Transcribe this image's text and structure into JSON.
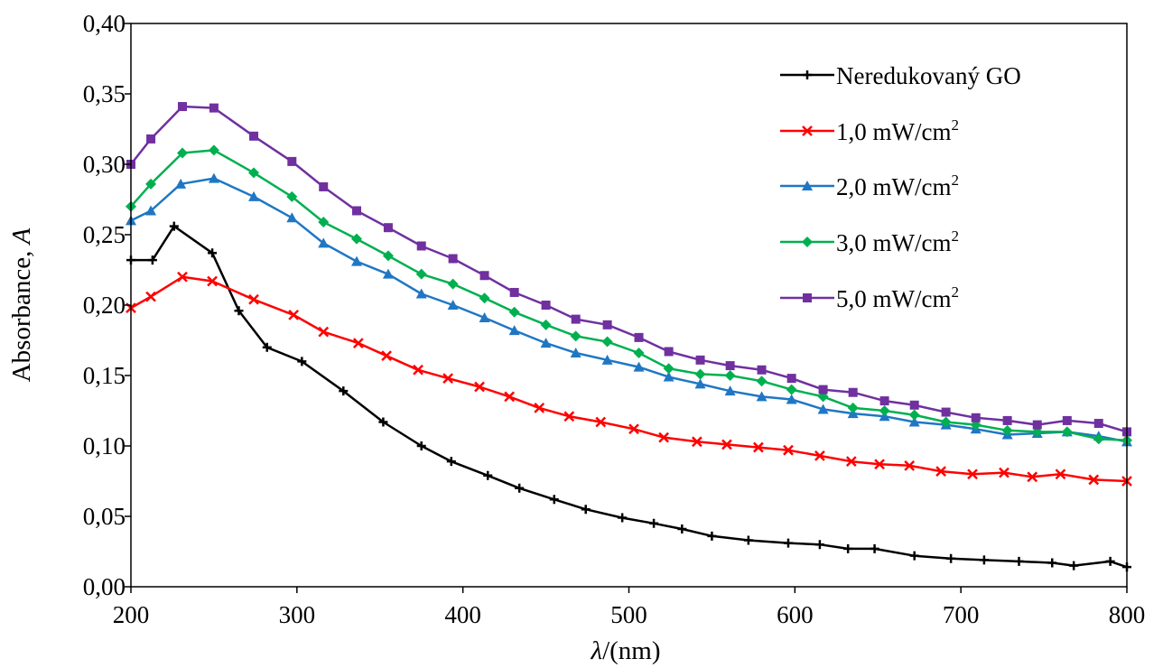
{
  "chart_data": {
    "type": "line",
    "xlabel_symbol": "λ",
    "xlabel_unit": "/(nm)",
    "ylabel_text": "Absorbance, ",
    "ylabel_symbol": "A",
    "xlim": [
      200,
      800
    ],
    "ylim": [
      0,
      0.4
    ],
    "x_ticks": [
      200,
      300,
      400,
      500,
      600,
      700,
      800
    ],
    "x_tick_labels": [
      "200",
      "300",
      "400",
      "500",
      "600",
      "700",
      "800"
    ],
    "y_ticks": [
      0,
      0.05,
      0.1,
      0.15,
      0.2,
      0.25,
      0.3,
      0.35,
      0.4
    ],
    "y_tick_labels": [
      "0,00",
      "0,05",
      "0,10",
      "0,15",
      "0,20",
      "0,25",
      "0,30",
      "0,35",
      "0,40"
    ],
    "grid": false,
    "legend_position": "top-right",
    "x": [
      200,
      213,
      226,
      249,
      265,
      282,
      303,
      328,
      352,
      375,
      393,
      415,
      434,
      455,
      474,
      496,
      515,
      532,
      550,
      572,
      596,
      615,
      632,
      648,
      672,
      694,
      714,
      735,
      755,
      768,
      790,
      800
    ],
    "series": [
      {
        "name": "Neredukovaný GO",
        "color": "#000000",
        "marker": "plus",
        "x": [
          200,
          213,
          226,
          249,
          265,
          282,
          303,
          328,
          352,
          375,
          393,
          415,
          434,
          455,
          474,
          496,
          515,
          532,
          550,
          572,
          596,
          615,
          632,
          648,
          672,
          694,
          714,
          735,
          755,
          768,
          790,
          800
        ],
        "values": [
          0.232,
          0.232,
          0.256,
          0.237,
          0.196,
          0.17,
          0.16,
          0.139,
          0.117,
          0.1,
          0.089,
          0.079,
          0.07,
          0.062,
          0.055,
          0.049,
          0.045,
          0.041,
          0.036,
          0.033,
          0.031,
          0.03,
          0.027,
          0.027,
          0.022,
          0.02,
          0.019,
          0.018,
          0.017,
          0.015,
          0.018,
          0.014
        ]
      },
      {
        "name": "1,0  mW/cm",
        "name_sup": "2",
        "color": "#ff0000",
        "marker": "cross",
        "x": [
          200,
          212,
          231,
          249,
          274,
          298,
          316,
          337,
          354,
          373,
          391,
          410,
          428,
          446,
          464,
          483,
          503,
          521,
          541,
          559,
          578,
          596,
          615,
          634,
          651,
          669,
          688,
          707,
          726,
          743,
          760,
          780,
          800
        ],
        "values": [
          0.198,
          0.206,
          0.22,
          0.217,
          0.204,
          0.193,
          0.181,
          0.173,
          0.164,
          0.154,
          0.148,
          0.142,
          0.135,
          0.127,
          0.121,
          0.117,
          0.112,
          0.106,
          0.103,
          0.101,
          0.099,
          0.097,
          0.093,
          0.089,
          0.087,
          0.086,
          0.082,
          0.08,
          0.081,
          0.078,
          0.08,
          0.076,
          0.075
        ]
      },
      {
        "name": "2,0  mW/cm",
        "name_sup": "2",
        "color": "#1f77c4",
        "marker": "triangle",
        "x": [
          200,
          212,
          230,
          250,
          274,
          297,
          316,
          336,
          355,
          375,
          394,
          413,
          431,
          450,
          468,
          487,
          506,
          524,
          543,
          561,
          580,
          598,
          617,
          635,
          654,
          672,
          691,
          709,
          728,
          746,
          764,
          783,
          800
        ],
        "values": [
          0.26,
          0.267,
          0.286,
          0.29,
          0.277,
          0.262,
          0.244,
          0.231,
          0.222,
          0.208,
          0.2,
          0.191,
          0.182,
          0.173,
          0.166,
          0.161,
          0.156,
          0.149,
          0.144,
          0.139,
          0.135,
          0.133,
          0.126,
          0.123,
          0.121,
          0.117,
          0.115,
          0.112,
          0.108,
          0.109,
          0.11,
          0.107,
          0.103
        ]
      },
      {
        "name": "3,0  mW/cm",
        "name_sup": "2",
        "color": "#00b050",
        "marker": "diamond",
        "x": [
          200,
          212,
          231,
          250,
          274,
          297,
          316,
          336,
          355,
          375,
          394,
          413,
          431,
          450,
          468,
          487,
          506,
          524,
          543,
          561,
          580,
          598,
          617,
          635,
          654,
          672,
          691,
          709,
          728,
          746,
          764,
          783,
          800
        ],
        "values": [
          0.27,
          0.286,
          0.308,
          0.31,
          0.294,
          0.277,
          0.259,
          0.247,
          0.235,
          0.222,
          0.215,
          0.205,
          0.195,
          0.186,
          0.178,
          0.174,
          0.166,
          0.155,
          0.151,
          0.15,
          0.146,
          0.14,
          0.135,
          0.127,
          0.125,
          0.122,
          0.117,
          0.115,
          0.111,
          0.11,
          0.11,
          0.105,
          0.104
        ]
      },
      {
        "name": "5,0  mW/cm",
        "name_sup": "2",
        "color": "#7030a0",
        "marker": "square",
        "x": [
          200,
          212,
          231,
          250,
          274,
          297,
          316,
          336,
          355,
          375,
          394,
          413,
          431,
          450,
          468,
          487,
          506,
          524,
          543,
          561,
          580,
          598,
          617,
          635,
          654,
          672,
          691,
          709,
          728,
          746,
          764,
          783,
          800
        ],
        "values": [
          0.3,
          0.318,
          0.341,
          0.34,
          0.32,
          0.302,
          0.284,
          0.267,
          0.255,
          0.242,
          0.233,
          0.221,
          0.209,
          0.2,
          0.19,
          0.186,
          0.177,
          0.167,
          0.161,
          0.157,
          0.154,
          0.148,
          0.14,
          0.138,
          0.132,
          0.129,
          0.124,
          0.12,
          0.118,
          0.115,
          0.118,
          0.116,
          0.11
        ]
      }
    ]
  }
}
